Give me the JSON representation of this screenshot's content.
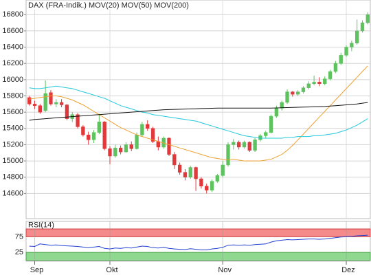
{
  "chart_data": [
    {
      "type": "candlestick",
      "name": "DAX (FRA-Indik.)",
      "color": "#e0383b",
      "up_color": "#5ec35e",
      "down_color": "#e0383b",
      "open": [
        15780,
        15700,
        15680,
        15620,
        15840,
        15700,
        15720,
        15690,
        15520,
        15570,
        15420,
        15320,
        15260,
        15350,
        15480,
        15150,
        15060,
        15160,
        15110,
        15200,
        15150,
        15320,
        15450,
        15400,
        15240,
        15170,
        15280,
        15080,
        14950,
        14860,
        14800,
        14920,
        14780,
        14690,
        14640,
        14750,
        14820,
        14950,
        15200,
        15230,
        15170,
        15230,
        15130,
        15260,
        15310,
        15350,
        15550,
        15650,
        15720,
        15850,
        15820,
        15850,
        15900,
        15950,
        15970,
        15950,
        16010,
        16100,
        16200,
        16300,
        16400,
        16450,
        16600,
        16700
      ],
      "high": [
        15800,
        15740,
        15700,
        15990,
        15870,
        15760,
        15760,
        15700,
        15600,
        15590,
        15440,
        15360,
        15380,
        15580,
        15490,
        15180,
        15200,
        15190,
        15230,
        15240,
        15350,
        15480,
        15500,
        15420,
        15300,
        15300,
        15290,
        15110,
        14980,
        14900,
        14940,
        14930,
        14800,
        14720,
        14770,
        14840,
        15000,
        15230,
        15270,
        15250,
        15250,
        15240,
        15280,
        15330,
        15370,
        15570,
        15680,
        15740,
        15880,
        15860,
        15870,
        15920,
        15980,
        16050,
        16030,
        16040,
        16120,
        16230,
        16330,
        16420,
        16480,
        16740,
        16730,
        16830
      ],
      "low": [
        15680,
        15640,
        15580,
        15600,
        15680,
        15660,
        15660,
        15500,
        15480,
        15400,
        15300,
        15200,
        15220,
        15330,
        15130,
        14960,
        15040,
        15080,
        15100,
        15120,
        15140,
        15300,
        15370,
        15220,
        15130,
        15150,
        15060,
        14900,
        14830,
        14760,
        14780,
        14630,
        14660,
        14600,
        14620,
        14730,
        14800,
        14930,
        15140,
        15140,
        15150,
        15110,
        15110,
        15240,
        15280,
        15340,
        15530,
        15620,
        15700,
        15790,
        15800,
        15830,
        15880,
        15930,
        15920,
        15930,
        15990,
        16080,
        16180,
        16280,
        16350,
        16430,
        16580,
        16680
      ],
      "close": [
        15700,
        15680,
        15600,
        15830,
        15700,
        15720,
        15690,
        15520,
        15570,
        15420,
        15320,
        15260,
        15350,
        15480,
        15150,
        15060,
        15160,
        15110,
        15200,
        15150,
        15320,
        15450,
        15400,
        15240,
        15170,
        15280,
        15080,
        14950,
        14860,
        14800,
        14920,
        14780,
        14690,
        14640,
        14750,
        14820,
        14950,
        15200,
        15230,
        15170,
        15230,
        15130,
        15260,
        15310,
        15350,
        15550,
        15650,
        15720,
        15850,
        15820,
        15850,
        15900,
        15950,
        15970,
        15950,
        16010,
        16100,
        16200,
        16300,
        16400,
        16450,
        16600,
        16700,
        16800
      ],
      "series": [
        {
          "name": "MOV(20)",
          "color": "#f0a030",
          "values": [
            15760,
            15770,
            15780,
            15790,
            15800,
            15800,
            15790,
            15770,
            15750,
            15720,
            15690,
            15650,
            15610,
            15570,
            15530,
            15490,
            15450,
            15410,
            15380,
            15350,
            15320,
            15300,
            15280,
            15260,
            15240,
            15220,
            15200,
            15180,
            15160,
            15140,
            15120,
            15100,
            15080,
            15060,
            15040,
            15030,
            15020,
            15020,
            15020,
            15010,
            15000,
            15000,
            15000,
            15000,
            15010,
            15020,
            15050,
            15080,
            15130,
            15190,
            15260,
            15330,
            15400,
            15470,
            15540,
            15610,
            15680,
            15750,
            15820,
            15890,
            15960,
            16030,
            16100,
            16170
          ]
        },
        {
          "name": "MOV(50)",
          "color": "#22c8dd",
          "values": [
            15900,
            15890,
            15890,
            15900,
            15910,
            15920,
            15910,
            15900,
            15890,
            15870,
            15850,
            15830,
            15810,
            15790,
            15770,
            15740,
            15710,
            15680,
            15660,
            15640,
            15620,
            15600,
            15590,
            15570,
            15560,
            15550,
            15540,
            15530,
            15520,
            15510,
            15500,
            15490,
            15470,
            15450,
            15430,
            15410,
            15390,
            15370,
            15350,
            15330,
            15310,
            15300,
            15290,
            15280,
            15280,
            15280,
            15280,
            15280,
            15290,
            15290,
            15300,
            15300,
            15300,
            15310,
            15310,
            15320,
            15330,
            15340,
            15360,
            15380,
            15410,
            15440,
            15480,
            15520
          ]
        },
        {
          "name": "MOV(200)",
          "color": "#111111",
          "values": [
            15500,
            15510,
            15515,
            15520,
            15525,
            15530,
            15535,
            15540,
            15545,
            15550,
            15555,
            15560,
            15565,
            15570,
            15575,
            15580,
            15585,
            15590,
            15595,
            15600,
            15605,
            15610,
            15615,
            15620,
            15625,
            15630,
            15632,
            15634,
            15636,
            15638,
            15640,
            15642,
            15644,
            15646,
            15648,
            15650,
            15650,
            15650,
            15650,
            15650,
            15650,
            15650,
            15650,
            15650,
            15650,
            15650,
            15652,
            15654,
            15656,
            15658,
            15660,
            15662,
            15664,
            15666,
            15668,
            15670,
            15675,
            15680,
            15685,
            15690,
            15695,
            15700,
            15710,
            15720
          ]
        }
      ],
      "xlim": [
        -0.6,
        63.6
      ],
      "ylim": [
        14290,
        16980
      ],
      "yticks": [
        14600,
        14800,
        15000,
        15200,
        15400,
        15600,
        15800,
        16000,
        16200,
        16400,
        16600,
        16800
      ],
      "grid": true
    },
    {
      "type": "line",
      "series": [
        {
          "name": "RSI(14)",
          "color": "#1f3fd0",
          "values": [
            45,
            44,
            52,
            50,
            48,
            49,
            47,
            46,
            45,
            44,
            42,
            40,
            42,
            44,
            38,
            36,
            39,
            38,
            40,
            39,
            42,
            45,
            44,
            40,
            39,
            41,
            38,
            36,
            35,
            34,
            37,
            35,
            33,
            33,
            36,
            38,
            41,
            48,
            49,
            48,
            49,
            48,
            50,
            51,
            52,
            58,
            62,
            64,
            66,
            65,
            66,
            67,
            68,
            68,
            67,
            68,
            70,
            72,
            74,
            75,
            76,
            78,
            79,
            80
          ]
        }
      ],
      "zone_colors": [
        "#8fd88f",
        "#f58a8a"
      ],
      "xlim": [
        -0.6,
        63.6
      ],
      "ylim": [
        0,
        100
      ],
      "yticks": [
        25,
        75
      ],
      "xticks": [
        {
          "value": 1,
          "label": "Sep"
        },
        {
          "value": 15,
          "label": "Okt"
        },
        {
          "value": 36,
          "label": "Nov"
        },
        {
          "value": 59,
          "label": "Dez"
        }
      ]
    }
  ]
}
